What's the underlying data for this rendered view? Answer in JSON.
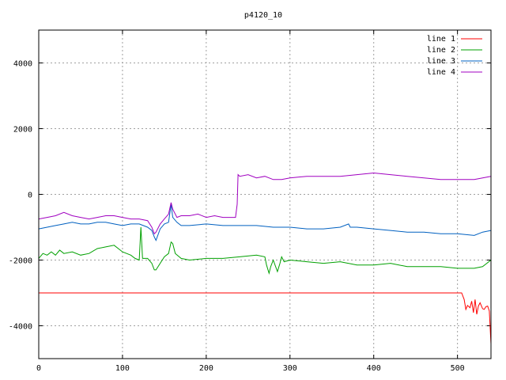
{
  "chart_data": {
    "type": "line",
    "title": "p4120_10",
    "xlabel": "",
    "ylabel": "",
    "xlim": [
      0,
      540
    ],
    "ylim": [
      -5000,
      5000
    ],
    "x_ticks": [
      0,
      100,
      200,
      300,
      400,
      500
    ],
    "y_ticks": [
      -4000,
      -2000,
      0,
      2000,
      4000
    ],
    "grid": true,
    "legend_position": "top-right",
    "series": [
      {
        "name": "line 1",
        "color": "#ff0000",
        "points": [
          [
            0,
            -3000
          ],
          [
            100,
            -3000
          ],
          [
            200,
            -3000
          ],
          [
            300,
            -3000
          ],
          [
            400,
            -3000
          ],
          [
            505,
            -3000
          ],
          [
            508,
            -3200
          ],
          [
            510,
            -3500
          ],
          [
            512,
            -3380
          ],
          [
            515,
            -3450
          ],
          [
            517,
            -3250
          ],
          [
            519,
            -3600
          ],
          [
            521,
            -3200
          ],
          [
            523,
            -3650
          ],
          [
            525,
            -3400
          ],
          [
            527,
            -3300
          ],
          [
            530,
            -3480
          ],
          [
            532,
            -3500
          ],
          [
            534,
            -3420
          ],
          [
            536,
            -3400
          ],
          [
            538,
            -3550
          ],
          [
            540,
            -4550
          ]
        ]
      },
      {
        "name": "line 2",
        "color": "#00a000",
        "points": [
          [
            0,
            -1950
          ],
          [
            5,
            -1800
          ],
          [
            10,
            -1850
          ],
          [
            15,
            -1750
          ],
          [
            20,
            -1850
          ],
          [
            25,
            -1700
          ],
          [
            30,
            -1800
          ],
          [
            40,
            -1750
          ],
          [
            50,
            -1850
          ],
          [
            60,
            -1800
          ],
          [
            70,
            -1650
          ],
          [
            80,
            -1600
          ],
          [
            90,
            -1550
          ],
          [
            100,
            -1750
          ],
          [
            110,
            -1850
          ],
          [
            115,
            -1950
          ],
          [
            120,
            -2000
          ],
          [
            122,
            -1000
          ],
          [
            124,
            -1950
          ],
          [
            130,
            -1950
          ],
          [
            135,
            -2100
          ],
          [
            138,
            -2300
          ],
          [
            140,
            -2300
          ],
          [
            145,
            -2100
          ],
          [
            150,
            -1900
          ],
          [
            155,
            -1800
          ],
          [
            158,
            -1450
          ],
          [
            160,
            -1500
          ],
          [
            163,
            -1800
          ],
          [
            170,
            -1950
          ],
          [
            180,
            -2000
          ],
          [
            200,
            -1950
          ],
          [
            220,
            -1950
          ],
          [
            240,
            -1900
          ],
          [
            260,
            -1850
          ],
          [
            270,
            -1900
          ],
          [
            272,
            -2150
          ],
          [
            275,
            -2400
          ],
          [
            277,
            -2200
          ],
          [
            280,
            -2000
          ],
          [
            285,
            -2350
          ],
          [
            288,
            -2100
          ],
          [
            290,
            -1900
          ],
          [
            293,
            -2050
          ],
          [
            300,
            -2000
          ],
          [
            320,
            -2050
          ],
          [
            340,
            -2100
          ],
          [
            360,
            -2050
          ],
          [
            380,
            -2150
          ],
          [
            400,
            -2150
          ],
          [
            420,
            -2100
          ],
          [
            440,
            -2200
          ],
          [
            460,
            -2200
          ],
          [
            480,
            -2200
          ],
          [
            500,
            -2250
          ],
          [
            520,
            -2250
          ],
          [
            530,
            -2200
          ],
          [
            540,
            -2000
          ]
        ]
      },
      {
        "name": "line 3",
        "color": "#0060c0",
        "points": [
          [
            0,
            -1050
          ],
          [
            10,
            -1000
          ],
          [
            20,
            -950
          ],
          [
            30,
            -900
          ],
          [
            40,
            -850
          ],
          [
            50,
            -900
          ],
          [
            60,
            -900
          ],
          [
            70,
            -850
          ],
          [
            80,
            -850
          ],
          [
            90,
            -900
          ],
          [
            100,
            -950
          ],
          [
            110,
            -900
          ],
          [
            120,
            -900
          ],
          [
            130,
            -1000
          ],
          [
            135,
            -1100
          ],
          [
            138,
            -1300
          ],
          [
            140,
            -1400
          ],
          [
            145,
            -1050
          ],
          [
            150,
            -900
          ],
          [
            155,
            -850
          ],
          [
            158,
            -300
          ],
          [
            160,
            -700
          ],
          [
            165,
            -850
          ],
          [
            170,
            -950
          ],
          [
            180,
            -950
          ],
          [
            200,
            -900
          ],
          [
            220,
            -950
          ],
          [
            240,
            -950
          ],
          [
            260,
            -950
          ],
          [
            280,
            -1000
          ],
          [
            300,
            -1000
          ],
          [
            320,
            -1050
          ],
          [
            340,
            -1050
          ],
          [
            360,
            -1000
          ],
          [
            370,
            -900
          ],
          [
            372,
            -1000
          ],
          [
            380,
            -1000
          ],
          [
            400,
            -1050
          ],
          [
            420,
            -1100
          ],
          [
            440,
            -1150
          ],
          [
            460,
            -1150
          ],
          [
            480,
            -1200
          ],
          [
            500,
            -1200
          ],
          [
            520,
            -1250
          ],
          [
            530,
            -1150
          ],
          [
            540,
            -1100
          ]
        ]
      },
      {
        "name": "line 4",
        "color": "#a000c0",
        "points": [
          [
            0,
            -750
          ],
          [
            10,
            -700
          ],
          [
            20,
            -650
          ],
          [
            30,
            -550
          ],
          [
            40,
            -650
          ],
          [
            50,
            -700
          ],
          [
            60,
            -750
          ],
          [
            70,
            -700
          ],
          [
            80,
            -650
          ],
          [
            90,
            -650
          ],
          [
            100,
            -700
          ],
          [
            110,
            -750
          ],
          [
            120,
            -750
          ],
          [
            130,
            -800
          ],
          [
            135,
            -1000
          ],
          [
            138,
            -1200
          ],
          [
            140,
            -1150
          ],
          [
            145,
            -900
          ],
          [
            150,
            -750
          ],
          [
            155,
            -600
          ],
          [
            158,
            -250
          ],
          [
            160,
            -450
          ],
          [
            165,
            -700
          ],
          [
            170,
            -650
          ],
          [
            180,
            -650
          ],
          [
            190,
            -600
          ],
          [
            200,
            -700
          ],
          [
            210,
            -650
          ],
          [
            220,
            -700
          ],
          [
            230,
            -700
          ],
          [
            235,
            -700
          ],
          [
            237,
            -300
          ],
          [
            238,
            600
          ],
          [
            240,
            550
          ],
          [
            250,
            600
          ],
          [
            260,
            500
          ],
          [
            270,
            550
          ],
          [
            280,
            450
          ],
          [
            290,
            450
          ],
          [
            300,
            500
          ],
          [
            320,
            550
          ],
          [
            340,
            550
          ],
          [
            360,
            550
          ],
          [
            380,
            600
          ],
          [
            400,
            650
          ],
          [
            420,
            600
          ],
          [
            440,
            550
          ],
          [
            460,
            500
          ],
          [
            480,
            450
          ],
          [
            500,
            450
          ],
          [
            520,
            450
          ],
          [
            530,
            500
          ],
          [
            540,
            550
          ]
        ]
      }
    ]
  }
}
